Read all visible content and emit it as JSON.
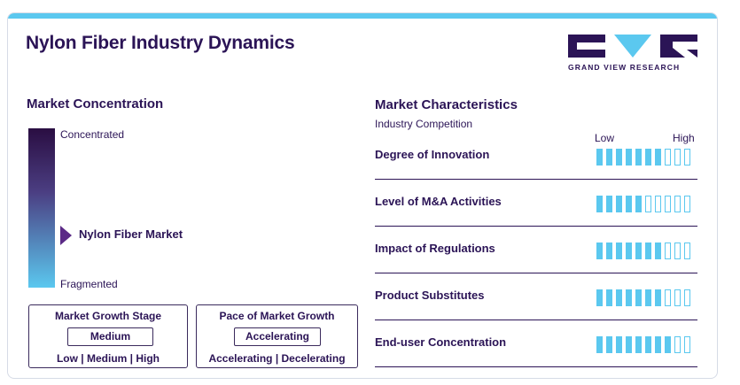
{
  "title": "Nylon Fiber Industry Dynamics",
  "logo": {
    "text": "GRAND VIEW RESEARCH"
  },
  "colors": {
    "accent": "#5bc8ef",
    "dark": "#2b1456",
    "gradient_top": "#2a0e42",
    "marker": "#5b2a86"
  },
  "concentration": {
    "title": "Market Concentration",
    "top_label": "Concentrated",
    "bottom_label": "Fragmented",
    "marker_label": "Nylon Fiber Market",
    "marker_level_from_top": 0.66
  },
  "growth_stage": {
    "title": "Market Growth Stage",
    "value": "Medium",
    "scale": "Low | Medium | High"
  },
  "growth_pace": {
    "title": "Pace of Market Growth",
    "value": "Accelerating",
    "scale": "Accelerating | Decelerating"
  },
  "characteristics": {
    "title": "Market Characteristics",
    "subtitle": "Industry Competition",
    "low_label": "Low",
    "high_label": "High",
    "total_segments": 10,
    "rows": [
      {
        "label": "Degree of Innovation",
        "level": 7
      },
      {
        "label": "Level of M&A Activities",
        "level": 5
      },
      {
        "label": "Impact of Regulations",
        "level": 7
      },
      {
        "label": "Product Substitutes",
        "level": 7
      },
      {
        "label": "End-user Concentration",
        "level": 8
      }
    ]
  }
}
